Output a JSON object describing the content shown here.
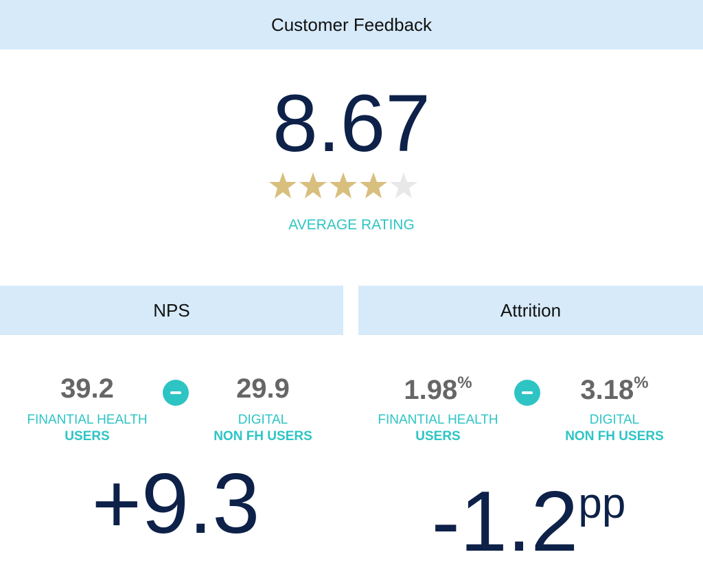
{
  "header": {
    "title": "Customer Feedback"
  },
  "rating": {
    "value": "8.67",
    "label": "AVERAGE RATING"
  },
  "nps": {
    "title": "NPS",
    "left": {
      "value": "39.2",
      "label_line1": "FINANTIAL HEALTH",
      "label_line2": "USERS"
    },
    "right": {
      "value": "29.9",
      "label_line1": "DIGITAL",
      "label_line2": "NON FH USERS"
    },
    "difference": "+9.3"
  },
  "attrition": {
    "title": "Attrition",
    "left": {
      "value": "1.98",
      "unit": "%",
      "label_line1": "FINANTIAL HEALTH",
      "label_line2": "USERS"
    },
    "right": {
      "value": "3.18",
      "unit": "%",
      "label_line1": "DIGITAL",
      "label_line2": "NON FH USERS"
    },
    "difference": "-1.2",
    "difference_unit": "pp"
  }
}
